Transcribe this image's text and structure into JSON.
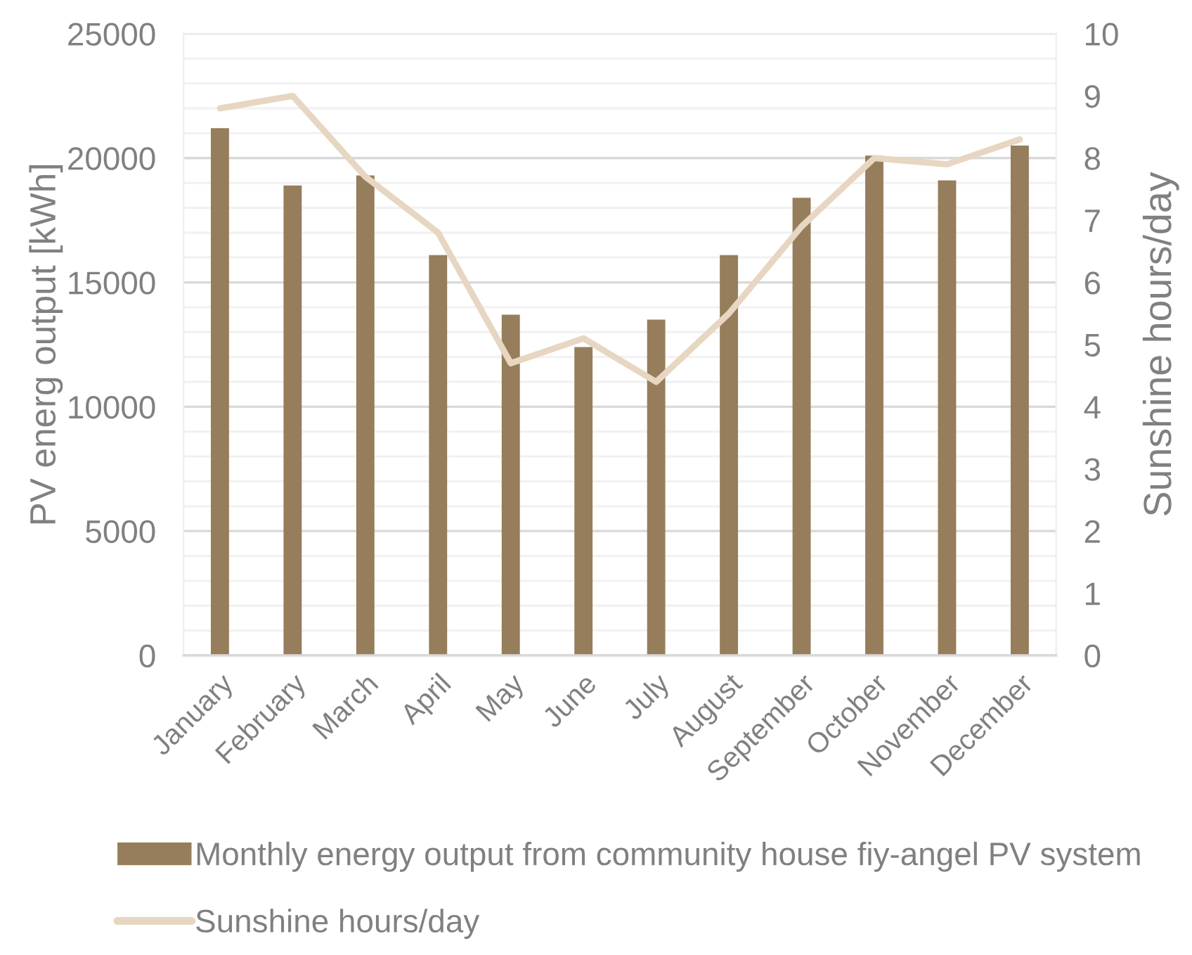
{
  "chart_data": {
    "type": "bar",
    "ylabel": "PV energ output [kWh]",
    "y2label": "Sunshine hours/day",
    "categories": [
      "January",
      "February",
      "March",
      "April",
      "May",
      "June",
      "July",
      "August",
      "September",
      "October",
      "November",
      "December"
    ],
    "series": [
      {
        "name": "Monthly energy output from community house fiy-angel PV system",
        "color": "#967d5b",
        "values": [
          21200,
          18900,
          19300,
          16100,
          13700,
          12400,
          13500,
          16100,
          18400,
          20100,
          19100,
          20500
        ]
      },
      {
        "name": "Sunshine hours/day",
        "type": "line",
        "axis": "y2",
        "color": "#e7d6c1",
        "values": [
          8.8,
          9.0,
          7.7,
          6.8,
          4.7,
          5.1,
          4.4,
          5.5,
          6.9,
          8.0,
          7.9,
          8.3
        ]
      }
    ],
    "ylim": [
      0,
      25000
    ],
    "yticks": [
      0,
      {
        "value": 1000,
        "label": null
      },
      {
        "value": 2000,
        "label": null
      },
      {
        "value": 3000,
        "label": null
      },
      {
        "value": 4000,
        "label": null
      },
      5000,
      {
        "value": 6000,
        "label": null
      },
      {
        "value": 7000,
        "label": null
      },
      {
        "value": 8000,
        "label": null
      },
      {
        "value": 9000,
        "label": null
      },
      10000,
      {
        "value": 11000,
        "label": null
      },
      {
        "value": 12000,
        "label": null
      },
      {
        "value": 13000,
        "label": null
      },
      {
        "value": 14000,
        "label": null
      },
      15000,
      {
        "value": 16000,
        "label": null
      },
      {
        "value": 17000,
        "label": null
      },
      {
        "value": 18000,
        "label": null
      },
      {
        "value": 19000,
        "label": null
      },
      20000,
      {
        "value": 21000,
        "label": null
      },
      {
        "value": 22000,
        "label": null
      },
      {
        "value": 23000,
        "label": null
      },
      {
        "value": 24000,
        "label": null
      },
      25000
    ],
    "y2lim": [
      0,
      10
    ],
    "y2ticks": [
      0,
      1,
      2,
      3,
      4,
      5,
      6,
      7,
      8,
      9,
      10
    ],
    "grid": "y",
    "legend": "bottom"
  }
}
